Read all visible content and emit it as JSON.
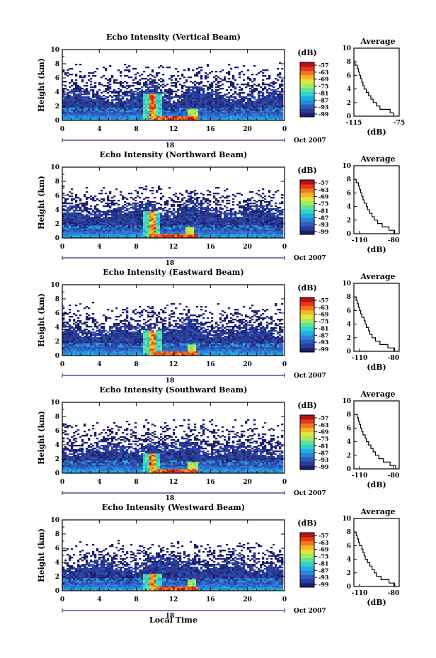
{
  "figure": {
    "xlabel_bottom": "Local Time",
    "date_label": "Oct 2007",
    "day_label": "18"
  },
  "colorbar": {
    "unit": "(dB)",
    "ticks": [
      "-57",
      "-63",
      "-69",
      "-75",
      "-81",
      "-87",
      "-93",
      "-99"
    ],
    "colors": [
      "#1b1f6e",
      "#2b3d96",
      "#2f5cc0",
      "#2c86d8",
      "#23aee3",
      "#2fd2cf",
      "#5ee39a",
      "#a7ea5d",
      "#e4e43a",
      "#f6b52a",
      "#f27722",
      "#e23a1c",
      "#b5121a"
    ]
  },
  "chart_data": [
    {
      "type": "heatmap",
      "title": "Echo Intensity (Vertical Beam)",
      "ylabel": "Height (km)",
      "xlim": [
        0,
        24
      ],
      "ylim": [
        0,
        10
      ],
      "xticks": [
        "0",
        "4",
        "8",
        "12",
        "16",
        "20",
        "0"
      ],
      "yticks": [
        "0",
        "2",
        "4",
        "6",
        "8",
        "10"
      ],
      "value_range_db": [
        -99,
        -57
      ],
      "features": {
        "echo_top_km": 4.2,
        "layer_top_km": 8.2,
        "rain_time_h": 9.8,
        "rain_peak_km": 3.8,
        "second_event_h": 14.2
      },
      "profile": {
        "title": "Average",
        "xlabel": "(dB)",
        "xticks": [
          "-115",
          "-75"
        ],
        "xlim": [
          -115,
          -75
        ],
        "ylim": [
          0,
          10
        ],
        "yticks": [
          "0",
          "2",
          "4",
          "6",
          "8",
          "10"
        ],
        "height_km": [
          0,
          0.5,
          1,
          1.5,
          2,
          2.5,
          3,
          3.5,
          4,
          4.5,
          5,
          5.5,
          6,
          6.5,
          7,
          7.5,
          8
        ],
        "db": [
          -80,
          -83,
          -92,
          -95,
          -98,
          -100,
          -102,
          -104,
          -106,
          -107,
          -108,
          -109,
          -110,
          -111,
          -112,
          -114,
          -115
        ]
      }
    },
    {
      "type": "heatmap",
      "title": "Echo Intensity (Northward Beam)",
      "ylabel": "Height (km)",
      "xlim": [
        0,
        24
      ],
      "ylim": [
        0,
        10
      ],
      "xticks": [
        "0",
        "4",
        "8",
        "12",
        "16",
        "20",
        "0"
      ],
      "yticks": [
        "0",
        "2",
        "4",
        "6",
        "8",
        "10"
      ],
      "value_range_db": [
        -99,
        -57
      ],
      "features": {
        "echo_top_km": 4.5,
        "layer_top_km": 7.5,
        "rain_time_h": 9.7,
        "rain_peak_km": 3.8,
        "second_event_h": 13.8
      },
      "profile": {
        "title": "Average",
        "xlabel": "(dB)",
        "xticks": [
          "-110",
          "-80"
        ],
        "xlim": [
          -115,
          -75
        ],
        "ylim": [
          0,
          10
        ],
        "yticks": [
          "0",
          "2",
          "4",
          "6",
          "8",
          "10"
        ],
        "height_km": [
          0,
          0.5,
          1,
          1.5,
          2,
          2.5,
          3,
          3.5,
          4,
          4.5,
          5,
          5.5,
          6,
          6.5,
          7,
          7.5,
          8
        ],
        "db": [
          -79,
          -84,
          -90,
          -94,
          -97,
          -99,
          -101,
          -103,
          -104,
          -106,
          -107,
          -108,
          -109,
          -110,
          -111,
          -113,
          -114
        ]
      }
    },
    {
      "type": "heatmap",
      "title": "Echo Intensity (Eastward Beam)",
      "ylabel": "Height (km)",
      "xlim": [
        0,
        24
      ],
      "ylim": [
        0,
        10
      ],
      "xticks": [
        "0",
        "4",
        "8",
        "12",
        "16",
        "20",
        "0"
      ],
      "yticks": [
        "0",
        "2",
        "4",
        "6",
        "8",
        "10"
      ],
      "value_range_db": [
        -99,
        -57
      ],
      "features": {
        "echo_top_km": 4.3,
        "layer_top_km": 7.6,
        "rain_time_h": 9.8,
        "rain_peak_km": 3.6,
        "second_event_h": 14.0
      },
      "profile": {
        "title": "Average",
        "xlabel": "(dB)",
        "xticks": [
          "-110",
          "-80"
        ],
        "xlim": [
          -115,
          -75
        ],
        "ylim": [
          0,
          10
        ],
        "yticks": [
          "0",
          "2",
          "4",
          "6",
          "8",
          "10"
        ],
        "height_km": [
          0,
          0.5,
          1,
          1.5,
          2,
          2.5,
          3,
          3.5,
          4,
          4.5,
          5,
          5.5,
          6,
          6.5,
          7,
          7.5,
          8
        ],
        "db": [
          -79,
          -85,
          -92,
          -96,
          -99,
          -101,
          -102,
          -104,
          -105,
          -106,
          -108,
          -109,
          -110,
          -111,
          -112,
          -113,
          -114
        ]
      }
    },
    {
      "type": "heatmap",
      "title": "Echo Intensity (Southward Beam)",
      "ylabel": "Height (km)",
      "xlim": [
        0,
        24
      ],
      "ylim": [
        0,
        10
      ],
      "xticks": [
        "0",
        "4",
        "8",
        "12",
        "16",
        "20",
        "0"
      ],
      "yticks": [
        "0",
        "2",
        "4",
        "6",
        "8",
        "10"
      ],
      "value_range_db": [
        -99,
        -57
      ],
      "features": {
        "echo_top_km": 4.0,
        "layer_top_km": 7.8,
        "rain_time_h": 9.7,
        "rain_peak_km": 2.8,
        "second_event_h": 14.2
      },
      "profile": {
        "title": "Average",
        "xlabel": "(dB)",
        "xticks": [
          "-110",
          "-80"
        ],
        "xlim": [
          -115,
          -75
        ],
        "ylim": [
          0,
          10
        ],
        "yticks": [
          "0",
          "2",
          "4",
          "6",
          "8",
          "10"
        ],
        "height_km": [
          0,
          0.5,
          1,
          1.5,
          2,
          2.5,
          3,
          3.5,
          4,
          4.5,
          5,
          5.5,
          6,
          6.5,
          7,
          7.5,
          8
        ],
        "db": [
          -78,
          -83,
          -89,
          -93,
          -96,
          -98,
          -100,
          -102,
          -104,
          -105,
          -107,
          -108,
          -109,
          -110,
          -111,
          -112,
          -114
        ]
      }
    },
    {
      "type": "heatmap",
      "title": "Echo Intensity (Westward Beam)",
      "ylabel": "Height (km)",
      "xlim": [
        0,
        24
      ],
      "ylim": [
        0,
        10
      ],
      "xticks": [
        "0",
        "4",
        "8",
        "12",
        "16",
        "20",
        "0"
      ],
      "yticks": [
        "0",
        "2",
        "4",
        "6",
        "8",
        "10"
      ],
      "value_range_db": [
        -99,
        -57
      ],
      "features": {
        "echo_top_km": 4.2,
        "layer_top_km": 7.2,
        "rain_time_h": 9.8,
        "rain_peak_km": 2.5,
        "second_event_h": 14.0
      },
      "profile": {
        "title": "Average",
        "xlabel": "(dB)",
        "xticks": [
          "-110",
          "-80"
        ],
        "xlim": [
          -115,
          -75
        ],
        "ylim": [
          0,
          10
        ],
        "yticks": [
          "0",
          "2",
          "4",
          "6",
          "8",
          "10"
        ],
        "height_km": [
          0,
          0.5,
          1,
          1.5,
          2,
          2.5,
          3,
          3.5,
          4,
          4.5,
          5,
          5.5,
          6,
          6.5,
          7,
          7.5,
          8
        ],
        "db": [
          -79,
          -84,
          -91,
          -95,
          -97,
          -99,
          -101,
          -103,
          -105,
          -106,
          -107,
          -108,
          -110,
          -111,
          -112,
          -113,
          -114
        ]
      }
    }
  ]
}
